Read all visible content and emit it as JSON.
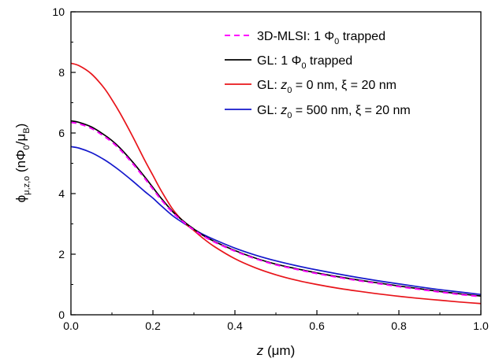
{
  "chart_data": {
    "type": "line",
    "xlabel_main": "z",
    "xlabel_unit": " (μm)",
    "ylabel_main": "ϕ",
    "ylabel_sub": "μ,z,o",
    "ylabel_unit_open": " (nΦ",
    "ylabel_unit_sub": "0",
    "ylabel_unit_mid": "/μ",
    "ylabel_unit_sub2": "B",
    "ylabel_unit_close": ")",
    "xlim": [
      0.0,
      1.0
    ],
    "ylim": [
      0,
      10
    ],
    "x_ticks": [
      0.0,
      0.2,
      0.4,
      0.6,
      0.8,
      1.0
    ],
    "x_tick_labels": [
      "0.0",
      "0.2",
      "0.4",
      "0.6",
      "0.8",
      "1.0"
    ],
    "y_ticks": [
      0,
      2,
      4,
      6,
      8,
      10
    ],
    "y_tick_labels": [
      "0",
      "2",
      "4",
      "6",
      "8",
      "10"
    ],
    "grid": false,
    "legend_position": "top-right",
    "x": [
      0.0,
      0.02,
      0.05,
      0.08,
      0.1,
      0.12,
      0.15,
      0.18,
      0.2,
      0.22,
      0.25,
      0.28,
      0.3,
      0.32,
      0.35,
      0.4,
      0.45,
      0.5,
      0.55,
      0.6,
      0.65,
      0.7,
      0.75,
      0.8,
      0.85,
      0.9,
      0.95,
      1.0
    ],
    "series": [
      {
        "name": "3D-MLSI: 1 Φ0 trapped",
        "legend_parts": [
          "3D-MLSI: 1 Φ",
          "0",
          " trapped"
        ],
        "color": "#ff00ff",
        "dash": true,
        "values": [
          6.35,
          6.3,
          6.15,
          5.9,
          5.7,
          5.45,
          5.0,
          4.5,
          4.15,
          3.8,
          3.35,
          3.0,
          2.8,
          2.62,
          2.4,
          2.1,
          1.85,
          1.65,
          1.5,
          1.36,
          1.24,
          1.13,
          1.03,
          0.93,
          0.84,
          0.75,
          0.67,
          0.6
        ]
      },
      {
        "name": "GL: 1 Φ0 trapped",
        "legend_parts": [
          "GL: 1 Φ",
          "0",
          " trapped"
        ],
        "color": "#000000",
        "dash": false,
        "values": [
          6.4,
          6.35,
          6.2,
          5.95,
          5.75,
          5.5,
          5.05,
          4.55,
          4.2,
          3.85,
          3.38,
          3.03,
          2.83,
          2.64,
          2.42,
          2.12,
          1.87,
          1.67,
          1.52,
          1.38,
          1.26,
          1.15,
          1.05,
          0.95,
          0.86,
          0.77,
          0.69,
          0.62
        ]
      },
      {
        "name": "GL: z0 = 0 nm, ξ = 20 nm",
        "legend_parts": [
          "GL: ",
          "z",
          "0",
          " = 0 nm, ξ = 20 nm"
        ],
        "color": "#e8141a",
        "dash": false,
        "values": [
          8.3,
          8.22,
          7.95,
          7.5,
          7.1,
          6.65,
          5.9,
          5.1,
          4.6,
          4.1,
          3.45,
          3.0,
          2.78,
          2.55,
          2.25,
          1.85,
          1.55,
          1.32,
          1.14,
          1.0,
          0.88,
          0.78,
          0.69,
          0.61,
          0.54,
          0.48,
          0.42,
          0.37
        ]
      },
      {
        "name": "GL: z0 = 500 nm, ξ = 20 nm",
        "legend_parts": [
          "GL: ",
          "z",
          "0",
          " = 500 nm, ξ = 20 nm"
        ],
        "color": "#1418cc",
        "dash": false,
        "values": [
          5.55,
          5.5,
          5.35,
          5.13,
          4.95,
          4.75,
          4.42,
          4.07,
          3.85,
          3.6,
          3.25,
          2.98,
          2.82,
          2.67,
          2.48,
          2.2,
          1.97,
          1.78,
          1.62,
          1.48,
          1.35,
          1.23,
          1.12,
          1.02,
          0.92,
          0.83,
          0.75,
          0.67
        ]
      }
    ]
  }
}
